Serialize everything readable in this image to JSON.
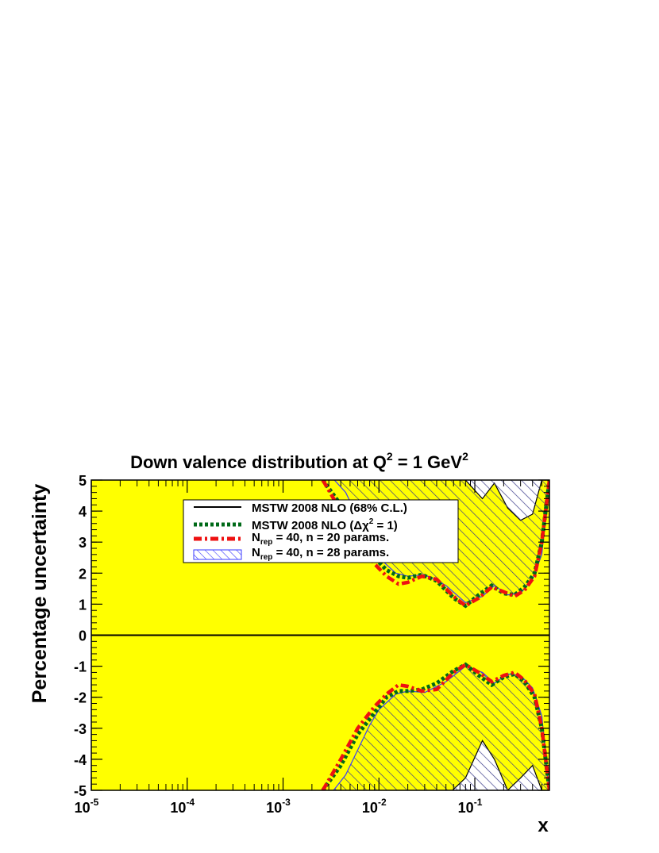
{
  "chart_data": {
    "type": "area",
    "title": "Down valence distribution at Q",
    "title_sup": "2",
    "title_mid": " = 1 GeV",
    "title_sup2": "2",
    "xlabel": "x",
    "ylabel": "Percentage uncertainty",
    "x_scale": "log",
    "xlim": [
      1e-05,
      0.6
    ],
    "ylim": [
      -5,
      5
    ],
    "x_ticks": [
      {
        "base": "10",
        "exp": "-5",
        "value": 1e-05
      },
      {
        "base": "10",
        "exp": "-4",
        "value": 0.0001
      },
      {
        "base": "10",
        "exp": "-3",
        "value": 0.001
      },
      {
        "base": "10",
        "exp": "-2",
        "value": 0.01
      },
      {
        "base": "10",
        "exp": "-1",
        "value": 0.1
      }
    ],
    "y_ticks": [
      "-5",
      "-4",
      "-3",
      "-2",
      "-1",
      "0",
      "1",
      "2",
      "3",
      "4",
      "5"
    ],
    "legend_position": "top-center",
    "legend": {
      "mstw_68": "MSTW 2008 NLO (68% C.L.)",
      "mstw_dchi": "MSTW 2008 NLO (Δχ",
      "mstw_dchi_sup": "2",
      "mstw_dchi_end": " = 1)",
      "n20_pre": "N",
      "n20_sub": "rep",
      "n20_post": " = 40, n = 20 params.",
      "n28_pre": "N",
      "n28_sub": "rep",
      "n28_post": " = 40, n = 28 params."
    },
    "colors": {
      "yellow_band": "#ffff00",
      "hatch": "#3a3a8a",
      "green_dotted": "#006a18",
      "red_dashdot": "#ee1111"
    },
    "series": [
      {
        "name": "MSTW 2008 NLO (68% C.L.)",
        "style": "band",
        "x": [
          1e-05,
          0.003,
          0.004,
          0.006,
          0.01,
          0.02,
          0.03,
          0.05,
          0.08,
          0.12,
          0.16,
          0.22,
          0.3,
          0.4,
          0.5,
          0.6
        ],
        "upper": [
          5,
          5,
          5,
          5,
          5,
          5,
          5,
          5,
          5,
          5,
          5,
          5,
          5,
          5,
          5,
          5
        ],
        "lower": [
          -5,
          -5,
          -5,
          -5,
          -5,
          -5,
          -5,
          -5,
          -5,
          -5,
          -5,
          -5,
          -5,
          -5,
          -5,
          -5
        ],
        "inner_upper": [
          5.2,
          5.2,
          5.2,
          5.2,
          5.2,
          5.2,
          5.2,
          5.2,
          5.0,
          4.4,
          4.9,
          4.1,
          3.7,
          3.9,
          5.0,
          5.2
        ],
        "inner_lower": [
          -5.2,
          -5.2,
          -5.2,
          -5.2,
          -5.2,
          -5.2,
          -5.2,
          -5.2,
          -4.6,
          -3.4,
          -4.0,
          -5.0,
          -4.6,
          -4.2,
          -5.0,
          -5.2
        ]
      },
      {
        "name": "MSTW 2008 NLO (Δχ² = 1)",
        "style": "dotted",
        "x": [
          0.0026,
          0.004,
          0.006,
          0.009,
          0.012,
          0.016,
          0.02,
          0.028,
          0.04,
          0.06,
          0.08,
          0.11,
          0.15,
          0.2,
          0.26,
          0.33,
          0.42,
          0.5,
          0.6
        ],
        "upper": [
          5.0,
          4.2,
          3.3,
          2.5,
          2.1,
          1.9,
          1.85,
          1.95,
          1.75,
          1.2,
          0.95,
          1.3,
          1.6,
          1.35,
          1.3,
          1.55,
          2.0,
          3.0,
          5.0
        ],
        "lower": [
          -5.0,
          -4.2,
          -3.2,
          -2.5,
          -2.0,
          -1.8,
          -1.8,
          -1.75,
          -1.55,
          -1.15,
          -0.95,
          -1.3,
          -1.6,
          -1.35,
          -1.25,
          -1.5,
          -2.0,
          -3.0,
          -5.0
        ]
      },
      {
        "name": "Nrep = 40, n = 20 params.",
        "style": "dashdot",
        "x": [
          0.0026,
          0.004,
          0.006,
          0.009,
          0.012,
          0.016,
          0.02,
          0.028,
          0.04,
          0.06,
          0.08,
          0.11,
          0.15,
          0.2,
          0.26,
          0.33,
          0.42,
          0.5,
          0.6
        ],
        "upper": [
          5.0,
          4.0,
          3.1,
          2.3,
          1.9,
          1.65,
          1.7,
          1.9,
          1.8,
          1.25,
          0.95,
          1.2,
          1.55,
          1.4,
          1.25,
          1.45,
          1.9,
          3.0,
          5.0
        ],
        "lower": [
          -5.0,
          -4.0,
          -3.0,
          -2.3,
          -1.9,
          -1.6,
          -1.65,
          -1.8,
          -1.75,
          -1.2,
          -0.95,
          -1.2,
          -1.5,
          -1.3,
          -1.2,
          -1.45,
          -1.9,
          -3.0,
          -5.0
        ]
      },
      {
        "name": "Nrep = 40, n = 28 params.",
        "style": "hatched_band",
        "x": [
          1e-05,
          0.003,
          0.0045,
          0.006,
          0.008,
          0.01,
          0.015,
          0.02,
          0.03,
          0.05,
          0.08,
          0.12,
          0.16,
          0.22,
          0.3,
          0.4,
          0.5,
          0.6
        ],
        "upper": [
          5.2,
          5.2,
          4.6,
          3.8,
          3.0,
          2.5,
          2.0,
          1.9,
          1.95,
          1.6,
          1.05,
          1.25,
          1.6,
          1.3,
          1.35,
          1.8,
          2.6,
          5.2
        ],
        "lower": [
          -5.2,
          -5.2,
          -4.5,
          -3.7,
          -2.9,
          -2.4,
          -1.9,
          -1.8,
          -1.85,
          -1.5,
          -1.0,
          -1.2,
          -1.55,
          -1.25,
          -1.3,
          -1.7,
          -2.6,
          -5.2
        ]
      }
    ]
  }
}
